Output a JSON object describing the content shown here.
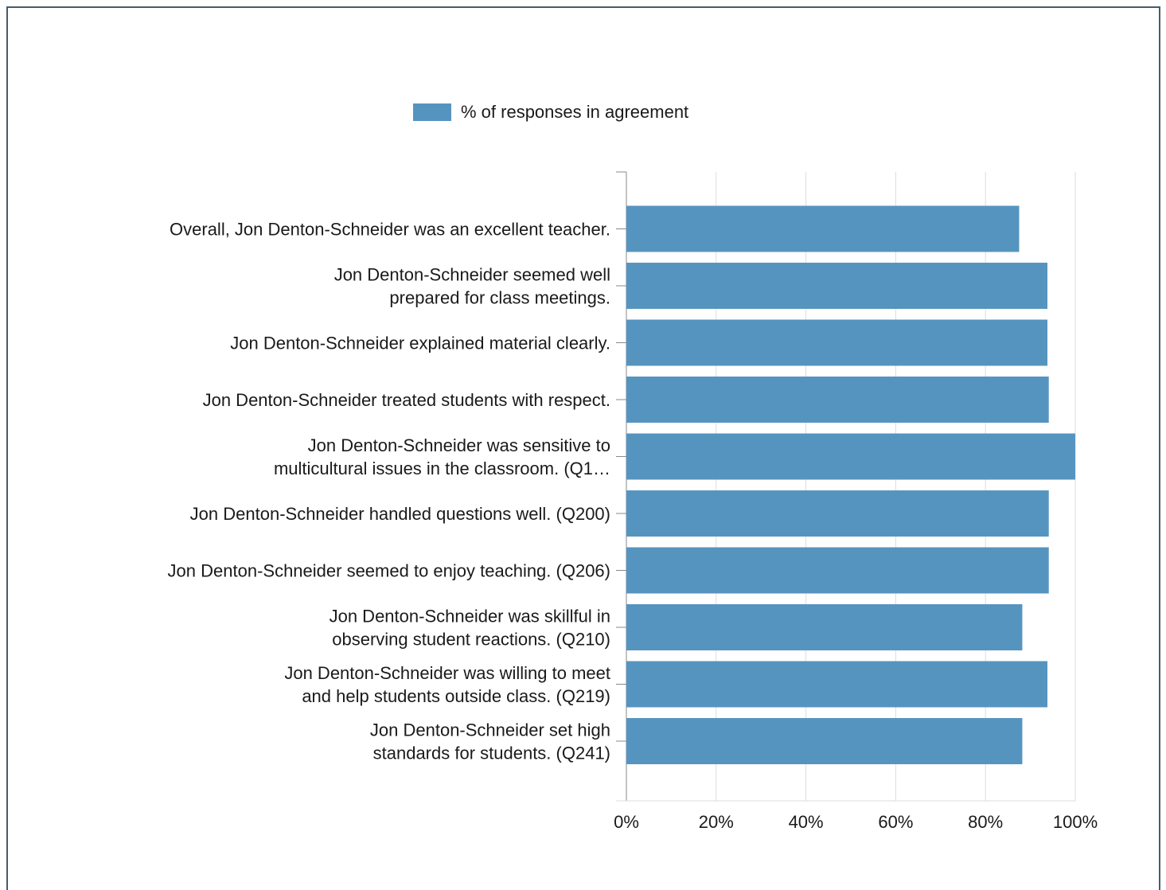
{
  "chart_data": {
    "type": "bar",
    "orientation": "horizontal",
    "categories": [
      [
        "Overall, Jon Denton-Schneider was an excellent teacher."
      ],
      [
        "Jon Denton-Schneider seemed well",
        "prepared for class meetings."
      ],
      [
        "Jon Denton-Schneider explained material clearly."
      ],
      [
        "Jon Denton-Schneider treated students with respect."
      ],
      [
        "Jon Denton-Schneider was sensitive to",
        "multicultural issues in the classroom. (Q1…"
      ],
      [
        "Jon Denton-Schneider handled questions well. (Q200)"
      ],
      [
        "Jon Denton-Schneider seemed to enjoy teaching. (Q206)"
      ],
      [
        "Jon Denton-Schneider was skillful in",
        "observing student reactions. (Q210)"
      ],
      [
        "Jon Denton-Schneider was willing to meet",
        "and help students outside class. (Q219)"
      ],
      [
        "Jon Denton-Schneider set high",
        "standards for students. (Q241)"
      ]
    ],
    "series": [
      {
        "name": "% of responses in agreement",
        "color": "#5694c0",
        "values": [
          87.5,
          93.8,
          93.8,
          94.1,
          100,
          94.1,
          94.1,
          88.2,
          93.8,
          88.2
        ]
      }
    ],
    "xlim": [
      0,
      100
    ],
    "xticks": [
      "0%",
      "20%",
      "40%",
      "60%",
      "80%",
      "100%"
    ],
    "grid": true,
    "legend_position": "top"
  }
}
